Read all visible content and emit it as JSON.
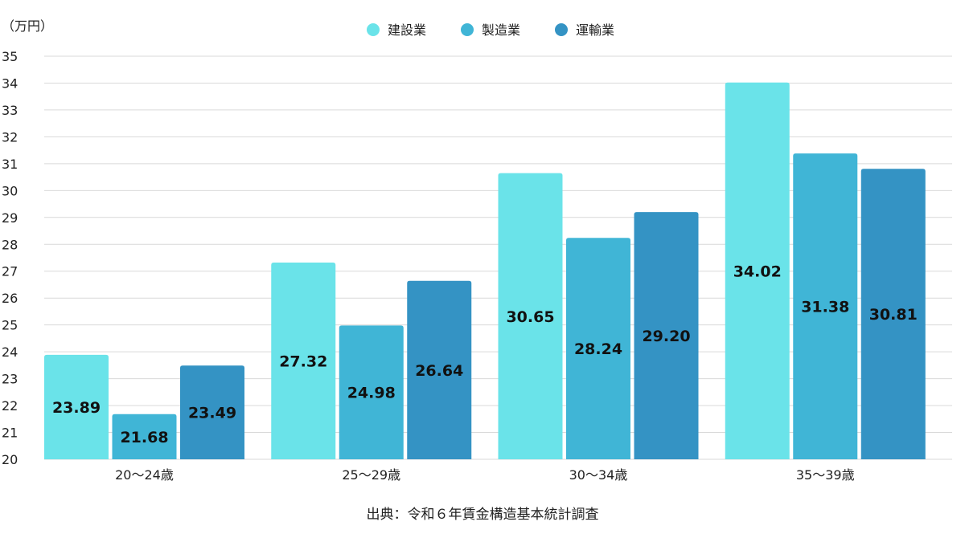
{
  "chart_data": {
    "type": "bar",
    "unit": "（万円）",
    "categories": [
      "20〜24歳",
      "25〜29歳",
      "30〜34歳",
      "35〜39歳"
    ],
    "series": [
      {
        "name": "建設業",
        "color": "#6ae3e9",
        "values": [
          23.89,
          27.32,
          30.65,
          34.02
        ]
      },
      {
        "name": "製造業",
        "color": "#40b5d6",
        "values": [
          21.68,
          24.98,
          28.24,
          31.38
        ]
      },
      {
        "name": "運輸業",
        "color": "#3493c4",
        "values": [
          23.49,
          26.64,
          29.2,
          30.81
        ]
      }
    ],
    "ylim": [
      20,
      35
    ],
    "yticks": [
      "20",
      "21",
      "22",
      "23",
      "24",
      "25",
      "26",
      "27",
      "28",
      "29",
      "30",
      "31",
      "32",
      "33",
      "34",
      "35"
    ],
    "grid": true,
    "legend_position": "top-center",
    "source": "出典：令和６年賃金構造基本統計調査"
  }
}
